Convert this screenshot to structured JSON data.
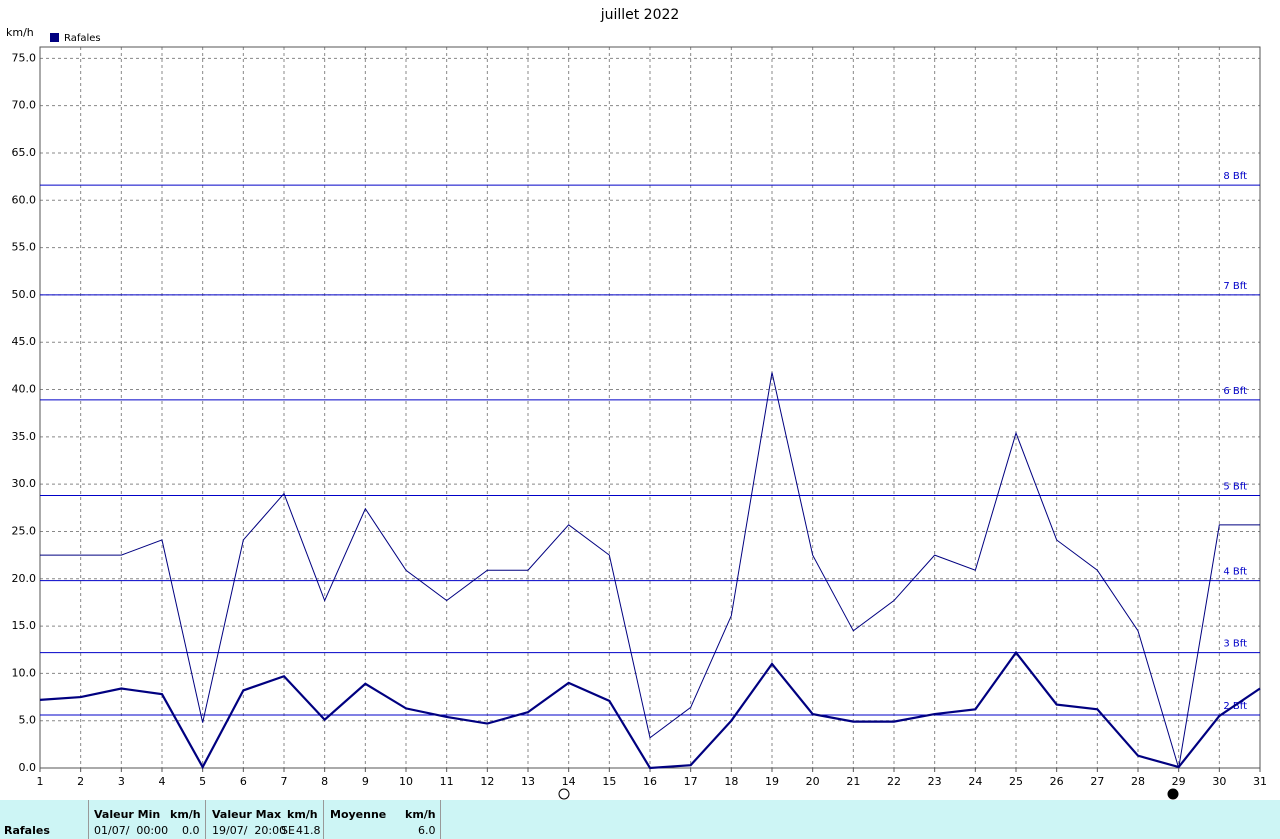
{
  "chart_data": {
    "type": "line",
    "title": "juillet 2022",
    "y_unit": "km/h",
    "x": [
      1,
      2,
      3,
      4,
      5,
      6,
      7,
      8,
      9,
      10,
      11,
      12,
      13,
      14,
      15,
      16,
      17,
      18,
      19,
      20,
      21,
      22,
      23,
      24,
      25,
      26,
      27,
      28,
      29,
      30,
      31
    ],
    "series": [
      {
        "name": "Rafales",
        "color": "#000080",
        "width": 1,
        "values": [
          22.5,
          22.5,
          22.5,
          24.1,
          4.8,
          24.1,
          29.0,
          17.7,
          27.4,
          20.9,
          17.7,
          20.9,
          20.9,
          25.7,
          22.5,
          3.2,
          6.4,
          16.1,
          41.8,
          22.5,
          14.5,
          17.7,
          22.5,
          20.9,
          35.4,
          24.1,
          20.9,
          14.5,
          0.0,
          25.7,
          25.7
        ]
      },
      {
        "color": "#000080",
        "width": 2.2,
        "values": [
          7.2,
          7.5,
          8.4,
          7.8,
          0.1,
          8.2,
          9.7,
          5.1,
          8.9,
          6.3,
          5.4,
          4.7,
          5.9,
          9.0,
          7.1,
          0.0,
          0.3,
          5.0,
          11.0,
          5.7,
          4.9,
          4.9,
          5.7,
          6.2,
          12.2,
          6.7,
          6.2,
          1.3,
          0.1,
          5.5,
          8.4
        ]
      }
    ],
    "xlim": [
      1,
      31
    ],
    "xticks": [
      1,
      2,
      3,
      4,
      5,
      6,
      7,
      8,
      9,
      10,
      11,
      12,
      13,
      14,
      15,
      16,
      17,
      18,
      19,
      20,
      21,
      22,
      23,
      24,
      25,
      26,
      27,
      28,
      29,
      30,
      31
    ],
    "ylim": [
      0,
      76.2
    ],
    "yticks": [
      {
        "value": 0,
        "label": "0.0"
      },
      {
        "value": 5,
        "label": "5.0"
      },
      {
        "value": 10,
        "label": "10.0"
      },
      {
        "value": 15,
        "label": "15.0"
      },
      {
        "value": 20,
        "label": "20.0"
      },
      {
        "value": 25,
        "label": "25.0"
      },
      {
        "value": 30,
        "label": "30.0"
      },
      {
        "value": 35,
        "label": "35.0"
      },
      {
        "value": 40,
        "label": "40.0"
      },
      {
        "value": 45,
        "label": "45.0"
      },
      {
        "value": 50,
        "label": "50.0"
      },
      {
        "value": 55,
        "label": "55.0"
      },
      {
        "value": 60,
        "label": "60.0"
      },
      {
        "value": 65,
        "label": "65.0"
      },
      {
        "value": 70,
        "label": "70.0"
      },
      {
        "value": 75,
        "label": "75.0"
      }
    ],
    "grid": true,
    "reference_lines": [
      {
        "value": 5.6,
        "label": "2 Bft"
      },
      {
        "value": 12.2,
        "label": "3 Bft"
      },
      {
        "value": 19.8,
        "label": "4 Bft"
      },
      {
        "value": 28.8,
        "label": "5 Bft"
      },
      {
        "value": 38.9,
        "label": "6 Bft"
      },
      {
        "value": 50.0,
        "label": "7 Bft"
      },
      {
        "value": 61.6,
        "label": "8 Bft"
      }
    ],
    "reference_color": "#0000c8"
  },
  "table": {
    "row_label": "Rafales",
    "headers": [
      "Valeur Min",
      "km/h",
      "Valeur Max",
      "km/h",
      "Moyenne",
      "km/h"
    ],
    "cells": [
      "01/07/  00:00",
      "0.0",
      "19/07/  20:00",
      "SE",
      "41.8",
      "6.0"
    ]
  }
}
